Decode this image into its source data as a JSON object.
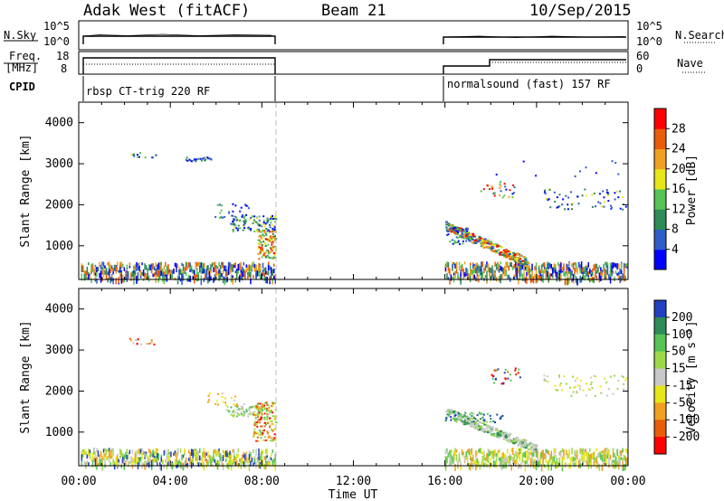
{
  "header": {
    "station": "Adak West (fitACF)",
    "beam": "Beam 21",
    "date": "10/Sep/2015"
  },
  "labels": {
    "nsky": "N.Sky",
    "nsearch": "N.Search",
    "freq_line1": "Freq.",
    "freq_line2": "[MHz]",
    "nave": "Nave",
    "cpid": "CPID",
    "cpid_segments": [
      "rbsp CT-trig 220 RF",
      "normalsound (fast) 157 RF"
    ]
  },
  "top_axes": {
    "noise_ticks_left": [
      "10^5",
      "10^0"
    ],
    "noise_ticks_right": [
      "10^5",
      "10^0"
    ],
    "freq_ticks_left": [
      "18",
      "8"
    ],
    "nave_ticks_right": [
      "60",
      "0"
    ]
  },
  "chart_data": [
    {
      "type": "heatmap",
      "title": "",
      "xlabel": "",
      "ylabel": "Slant Range [km]",
      "ylim": [
        180,
        4500
      ],
      "yticks": [
        "1000",
        "2000",
        "3000",
        "4000"
      ],
      "colorbar": {
        "label": "Power [dB]",
        "ticks": [
          "4",
          "8",
          "12",
          "16",
          "20",
          "24",
          "28"
        ],
        "range": [
          0,
          30
        ],
        "colors": [
          "#0000ff",
          "#2e5cc8",
          "#2e8a57",
          "#55c455",
          "#e6e619",
          "#f0a020",
          "#e85c0a",
          "#ff0000"
        ]
      }
    },
    {
      "type": "heatmap",
      "title": "",
      "xlabel": "Time UT",
      "ylabel": "Slant Range [km]",
      "ylim": [
        180,
        4500
      ],
      "yticks": [
        "1000",
        "2000",
        "3000",
        "4000"
      ],
      "colorbar": {
        "label": "Velocity [m s⁻¹]",
        "ticks": [
          "200",
          "100",
          "50",
          "15",
          "-15",
          "-50",
          "-100",
          "-200"
        ],
        "range": [
          -250,
          250
        ],
        "colors": [
          "#2040c0",
          "#2e8a57",
          "#55c455",
          "#9ed84a",
          "#c8c8c8",
          "#e6e619",
          "#f0a020",
          "#e85c0a",
          "#ff0000"
        ]
      }
    }
  ],
  "time_axis": {
    "range_hours": [
      0,
      24
    ],
    "ticks": [
      "00:00",
      "04:00",
      "08:00",
      "12:00",
      "16:00",
      "20:00",
      "00:00"
    ],
    "label": "Time UT",
    "data_gap_hours": [
      8.6,
      16.0
    ]
  },
  "colors": {
    "axis": "#000000",
    "gap_line": "#bbbbbb"
  }
}
